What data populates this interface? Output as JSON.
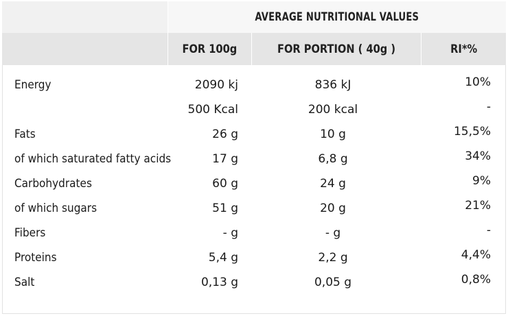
{
  "table": {
    "title": "AVERAGE NUTRITIONAL VALUES",
    "headers": {
      "per_100g": "FOR 100g",
      "per_portion": "FOR PORTION ( 40g )",
      "ri": "RI*%"
    },
    "rows": [
      {
        "name": "Energy",
        "per_100g": "2090 kj",
        "per_portion": "836 kJ",
        "ri": "10%"
      },
      {
        "name": "",
        "per_100g": "500 Kcal",
        "per_portion": "200 kcal",
        "ri": "-"
      },
      {
        "name": "Fats",
        "per_100g": "26 g",
        "per_portion": "10 g",
        "ri": "15,5%"
      },
      {
        "name": "of which saturated fatty acids",
        "per_100g": "17 g",
        "per_portion": "6,8 g",
        "ri": "34%"
      },
      {
        "name": "Carbohydrates",
        "per_100g": "60 g",
        "per_portion": "24 g",
        "ri": "9%"
      },
      {
        "name": "of which sugars",
        "per_100g": "51 g",
        "per_portion": "20 g",
        "ri": "21%"
      },
      {
        "name": "Fibers",
        "per_100g": "- g",
        "per_portion": "- g",
        "ri": "-"
      },
      {
        "name": "Proteins",
        "per_100g": "5,4 g",
        "per_portion": "2,2 g",
        "ri": "4,4%"
      },
      {
        "name": "Salt",
        "per_100g": "0,13 g",
        "per_portion": "0,05 g",
        "ri": "0,8%"
      }
    ]
  }
}
